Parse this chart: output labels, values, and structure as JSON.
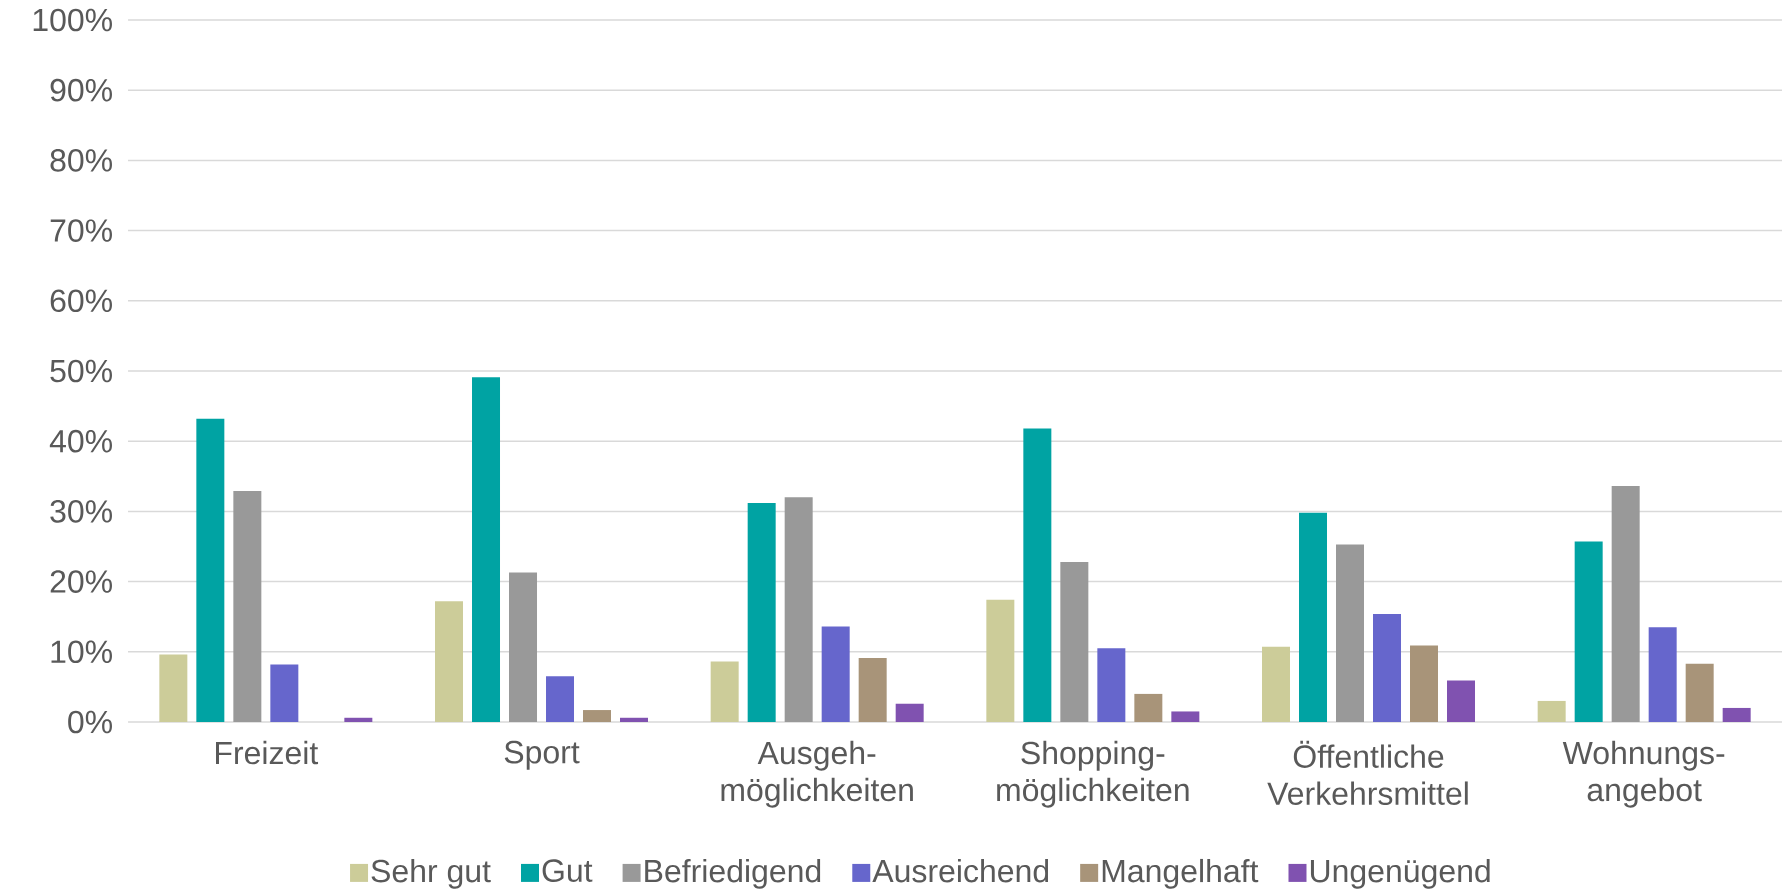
{
  "chart_data": {
    "type": "bar",
    "categories": [
      "Freizeit",
      "Sport",
      "Ausgeh-möglichkeiten",
      "Shopping-möglichkeiten",
      "Öffentliche Verkehrsmittel",
      "Wohnungs-angebot"
    ],
    "series": [
      {
        "name": "Sehr gut",
        "color": "#cccc99",
        "values": [
          9.6,
          17.2,
          8.6,
          17.4,
          10.7,
          3.0
        ]
      },
      {
        "name": "Gut",
        "color": "#00a3a3",
        "values": [
          43.2,
          49.1,
          31.2,
          41.8,
          29.8,
          25.7
        ]
      },
      {
        "name": "Befriedigend",
        "color": "#999999",
        "values": [
          32.9,
          21.3,
          32.0,
          22.8,
          25.3,
          33.6
        ]
      },
      {
        "name": "Ausreichend",
        "color": "#6666cc",
        "values": [
          8.2,
          6.5,
          13.6,
          10.5,
          15.4,
          13.5
        ]
      },
      {
        "name": "Mangelhaft",
        "color": "#a89479",
        "values": [
          0,
          1.7,
          9.1,
          4.0,
          10.9,
          8.3
        ]
      },
      {
        "name": "Ungenügend",
        "color": "#8052b0",
        "values": [
          0.6,
          0.6,
          2.6,
          1.5,
          5.9,
          2.0
        ]
      }
    ],
    "ylim": [
      0,
      100
    ],
    "yticks": [
      {
        "value": 0,
        "label": "0%"
      },
      {
        "value": 10,
        "label": "10%"
      },
      {
        "value": 20,
        "label": "20%"
      },
      {
        "value": 30,
        "label": "30%"
      },
      {
        "value": 40,
        "label": "40%"
      },
      {
        "value": 50,
        "label": "50%"
      },
      {
        "value": 60,
        "label": "60%"
      },
      {
        "value": 70,
        "label": "70%"
      },
      {
        "value": 80,
        "label": "80%"
      },
      {
        "value": 90,
        "label": "90%"
      },
      {
        "value": 100,
        "label": "100%"
      }
    ],
    "grid": "y",
    "legend": "bottom"
  }
}
